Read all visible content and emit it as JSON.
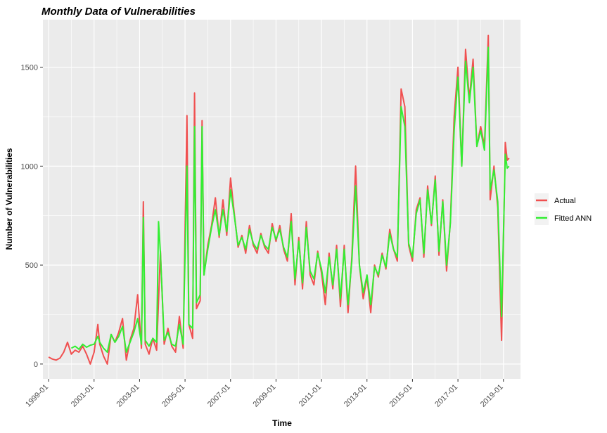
{
  "chart_data": {
    "type": "line",
    "title": "Monthly Data of Vulnerabilities",
    "xlabel": "Time",
    "ylabel": "Number of Vulnerabilities",
    "x_ticks": [
      "1999-01",
      "2001-01",
      "2003-01",
      "2005-01",
      "2007-01",
      "2009-01",
      "2011-01",
      "2013-01",
      "2015-01",
      "2017-01",
      "2019-01"
    ],
    "y_ticks": [
      0,
      500,
      1000,
      1500
    ],
    "xlim": [
      "1998-10",
      "2019-10"
    ],
    "ylim": [
      -75,
      1740
    ],
    "legend_position": "right",
    "grid": true,
    "colors": {
      "Actual": "#f05050",
      "Fitted ANN": "#33ee33",
      "panel": "#ebebeb",
      "grid": "#ffffff"
    },
    "series": [
      {
        "name": "Actual",
        "points": [
          [
            "1999-01",
            35
          ],
          [
            "1999-03",
            25
          ],
          [
            "1999-05",
            20
          ],
          [
            "1999-07",
            30
          ],
          [
            "1999-09",
            60
          ],
          [
            "1999-11",
            110
          ],
          [
            "2000-01",
            50
          ],
          [
            "2000-03",
            70
          ],
          [
            "2000-05",
            60
          ],
          [
            "2000-07",
            90
          ],
          [
            "2000-09",
            50
          ],
          [
            "2000-11",
            0
          ],
          [
            "2001-01",
            60
          ],
          [
            "2001-03",
            200
          ],
          [
            "2001-04",
            100
          ],
          [
            "2001-06",
            40
          ],
          [
            "2001-08",
            0
          ],
          [
            "2001-10",
            150
          ],
          [
            "2001-12",
            110
          ],
          [
            "2002-02",
            160
          ],
          [
            "2002-04",
            230
          ],
          [
            "2002-06",
            20
          ],
          [
            "2002-08",
            120
          ],
          [
            "2002-10",
            180
          ],
          [
            "2002-12",
            350
          ],
          [
            "2003-02",
            80
          ],
          [
            "2003-03",
            820
          ],
          [
            "2003-04",
            100
          ],
          [
            "2003-06",
            50
          ],
          [
            "2003-08",
            130
          ],
          [
            "2003-10",
            70
          ],
          [
            "2003-12",
            570
          ],
          [
            "2004-02",
            100
          ],
          [
            "2004-04",
            180
          ],
          [
            "2004-06",
            90
          ],
          [
            "2004-08",
            60
          ],
          [
            "2004-10",
            240
          ],
          [
            "2004-12",
            80
          ],
          [
            "2005-02",
            1255
          ],
          [
            "2005-03",
            200
          ],
          [
            "2005-05",
            130
          ],
          [
            "2005-06",
            1370
          ],
          [
            "2005-07",
            280
          ],
          [
            "2005-09",
            320
          ],
          [
            "2005-10",
            1230
          ],
          [
            "2005-11",
            450
          ],
          [
            "2006-01",
            600
          ],
          [
            "2006-03",
            700
          ],
          [
            "2006-05",
            840
          ],
          [
            "2006-07",
            640
          ],
          [
            "2006-09",
            830
          ],
          [
            "2006-11",
            650
          ],
          [
            "2007-01",
            940
          ],
          [
            "2007-03",
            760
          ],
          [
            "2007-05",
            590
          ],
          [
            "2007-07",
            650
          ],
          [
            "2007-09",
            560
          ],
          [
            "2007-11",
            700
          ],
          [
            "2008-01",
            600
          ],
          [
            "2008-03",
            560
          ],
          [
            "2008-05",
            660
          ],
          [
            "2008-07",
            590
          ],
          [
            "2008-09",
            560
          ],
          [
            "2008-11",
            710
          ],
          [
            "2009-01",
            620
          ],
          [
            "2009-03",
            700
          ],
          [
            "2009-05",
            580
          ],
          [
            "2009-07",
            520
          ],
          [
            "2009-09",
            760
          ],
          [
            "2009-11",
            400
          ],
          [
            "2010-01",
            640
          ],
          [
            "2010-03",
            380
          ],
          [
            "2010-05",
            720
          ],
          [
            "2010-07",
            450
          ],
          [
            "2010-09",
            400
          ],
          [
            "2010-11",
            570
          ],
          [
            "2011-01",
            460
          ],
          [
            "2011-03",
            300
          ],
          [
            "2011-05",
            560
          ],
          [
            "2011-07",
            380
          ],
          [
            "2011-09",
            600
          ],
          [
            "2011-11",
            290
          ],
          [
            "2012-01",
            600
          ],
          [
            "2012-03",
            260
          ],
          [
            "2012-05",
            540
          ],
          [
            "2012-07",
            1000
          ],
          [
            "2012-09",
            500
          ],
          [
            "2012-11",
            330
          ],
          [
            "2013-01",
            440
          ],
          [
            "2013-03",
            260
          ],
          [
            "2013-05",
            500
          ],
          [
            "2013-07",
            440
          ],
          [
            "2013-09",
            560
          ],
          [
            "2013-11",
            480
          ],
          [
            "2014-01",
            680
          ],
          [
            "2014-03",
            580
          ],
          [
            "2014-05",
            520
          ],
          [
            "2014-07",
            1390
          ],
          [
            "2014-09",
            1300
          ],
          [
            "2014-11",
            600
          ],
          [
            "2015-01",
            520
          ],
          [
            "2015-03",
            780
          ],
          [
            "2015-05",
            840
          ],
          [
            "2015-07",
            540
          ],
          [
            "2015-09",
            900
          ],
          [
            "2015-11",
            700
          ],
          [
            "2016-01",
            950
          ],
          [
            "2016-03",
            550
          ],
          [
            "2016-05",
            830
          ],
          [
            "2016-07",
            470
          ],
          [
            "2016-09",
            720
          ],
          [
            "2016-11",
            1250
          ],
          [
            "2017-01",
            1500
          ],
          [
            "2017-03",
            1000
          ],
          [
            "2017-05",
            1590
          ],
          [
            "2017-07",
            1340
          ],
          [
            "2017-09",
            1540
          ],
          [
            "2017-11",
            1100
          ],
          [
            "2018-01",
            1200
          ],
          [
            "2018-03",
            1100
          ],
          [
            "2018-05",
            1660
          ],
          [
            "2018-06",
            830
          ],
          [
            "2018-08",
            1000
          ],
          [
            "2018-10",
            790
          ],
          [
            "2018-12",
            120
          ],
          [
            "2019-02",
            1120
          ],
          [
            "2019-03",
            1030
          ],
          [
            "2019-04",
            1040
          ]
        ]
      },
      {
        "name": "Fitted ANN",
        "points": [
          [
            "2000-01",
            80
          ],
          [
            "2000-03",
            90
          ],
          [
            "2000-05",
            75
          ],
          [
            "2000-07",
            100
          ],
          [
            "2000-09",
            85
          ],
          [
            "2000-11",
            95
          ],
          [
            "2001-01",
            100
          ],
          [
            "2001-03",
            140
          ],
          [
            "2001-04",
            110
          ],
          [
            "2001-06",
            80
          ],
          [
            "2001-08",
            60
          ],
          [
            "2001-10",
            150
          ],
          [
            "2001-12",
            110
          ],
          [
            "2002-02",
            140
          ],
          [
            "2002-04",
            190
          ],
          [
            "2002-06",
            60
          ],
          [
            "2002-08",
            110
          ],
          [
            "2002-10",
            160
          ],
          [
            "2002-12",
            230
          ],
          [
            "2003-02",
            100
          ],
          [
            "2003-03",
            740
          ],
          [
            "2003-04",
            120
          ],
          [
            "2003-06",
            90
          ],
          [
            "2003-08",
            130
          ],
          [
            "2003-10",
            110
          ],
          [
            "2003-11",
            720
          ],
          [
            "2003-12",
            560
          ],
          [
            "2004-02",
            120
          ],
          [
            "2004-04",
            160
          ],
          [
            "2004-06",
            100
          ],
          [
            "2004-08",
            90
          ],
          [
            "2004-10",
            200
          ],
          [
            "2004-12",
            100
          ],
          [
            "2005-02",
            1000
          ],
          [
            "2005-03",
            200
          ],
          [
            "2005-05",
            180
          ],
          [
            "2005-06",
            1200
          ],
          [
            "2005-07",
            310
          ],
          [
            "2005-09",
            350
          ],
          [
            "2005-10",
            1200
          ],
          [
            "2005-11",
            450
          ],
          [
            "2006-01",
            580
          ],
          [
            "2006-03",
            690
          ],
          [
            "2006-05",
            780
          ],
          [
            "2006-07",
            650
          ],
          [
            "2006-09",
            780
          ],
          [
            "2006-11",
            670
          ],
          [
            "2007-01",
            880
          ],
          [
            "2007-03",
            750
          ],
          [
            "2007-05",
            600
          ],
          [
            "2007-07",
            640
          ],
          [
            "2007-09",
            580
          ],
          [
            "2007-11",
            680
          ],
          [
            "2008-01",
            610
          ],
          [
            "2008-03",
            580
          ],
          [
            "2008-05",
            650
          ],
          [
            "2008-07",
            600
          ],
          [
            "2008-09",
            580
          ],
          [
            "2008-11",
            690
          ],
          [
            "2009-01",
            630
          ],
          [
            "2009-03",
            680
          ],
          [
            "2009-05",
            590
          ],
          [
            "2009-07",
            540
          ],
          [
            "2009-09",
            720
          ],
          [
            "2009-11",
            430
          ],
          [
            "2010-01",
            620
          ],
          [
            "2010-03",
            410
          ],
          [
            "2010-05",
            690
          ],
          [
            "2010-07",
            470
          ],
          [
            "2010-09",
            430
          ],
          [
            "2010-11",
            560
          ],
          [
            "2011-01",
            480
          ],
          [
            "2011-03",
            360
          ],
          [
            "2011-05",
            540
          ],
          [
            "2011-07",
            400
          ],
          [
            "2011-09",
            580
          ],
          [
            "2011-11",
            330
          ],
          [
            "2012-01",
            580
          ],
          [
            "2012-03",
            300
          ],
          [
            "2012-05",
            520
          ],
          [
            "2012-07",
            900
          ],
          [
            "2012-09",
            500
          ],
          [
            "2012-11",
            360
          ],
          [
            "2013-01",
            450
          ],
          [
            "2013-03",
            300
          ],
          [
            "2013-05",
            490
          ],
          [
            "2013-07",
            450
          ],
          [
            "2013-09",
            550
          ],
          [
            "2013-11",
            490
          ],
          [
            "2014-01",
            660
          ],
          [
            "2014-03",
            580
          ],
          [
            "2014-05",
            540
          ],
          [
            "2014-07",
            1300
          ],
          [
            "2014-09",
            1200
          ],
          [
            "2014-11",
            610
          ],
          [
            "2015-01",
            540
          ],
          [
            "2015-03",
            760
          ],
          [
            "2015-05",
            830
          ],
          [
            "2015-07",
            560
          ],
          [
            "2015-09",
            880
          ],
          [
            "2015-11",
            710
          ],
          [
            "2016-01",
            930
          ],
          [
            "2016-03",
            570
          ],
          [
            "2016-05",
            820
          ],
          [
            "2016-07",
            500
          ],
          [
            "2016-09",
            710
          ],
          [
            "2016-11",
            1180
          ],
          [
            "2017-01",
            1450
          ],
          [
            "2017-03",
            1000
          ],
          [
            "2017-05",
            1530
          ],
          [
            "2017-07",
            1320
          ],
          [
            "2017-09",
            1500
          ],
          [
            "2017-11",
            1100
          ],
          [
            "2018-01",
            1180
          ],
          [
            "2018-03",
            1080
          ],
          [
            "2018-05",
            1600
          ],
          [
            "2018-06",
            880
          ],
          [
            "2018-08",
            980
          ],
          [
            "2018-10",
            820
          ],
          [
            "2018-12",
            240
          ],
          [
            "2019-02",
            1060
          ],
          [
            "2019-03",
            990
          ],
          [
            "2019-04",
            1000
          ]
        ]
      }
    ]
  }
}
